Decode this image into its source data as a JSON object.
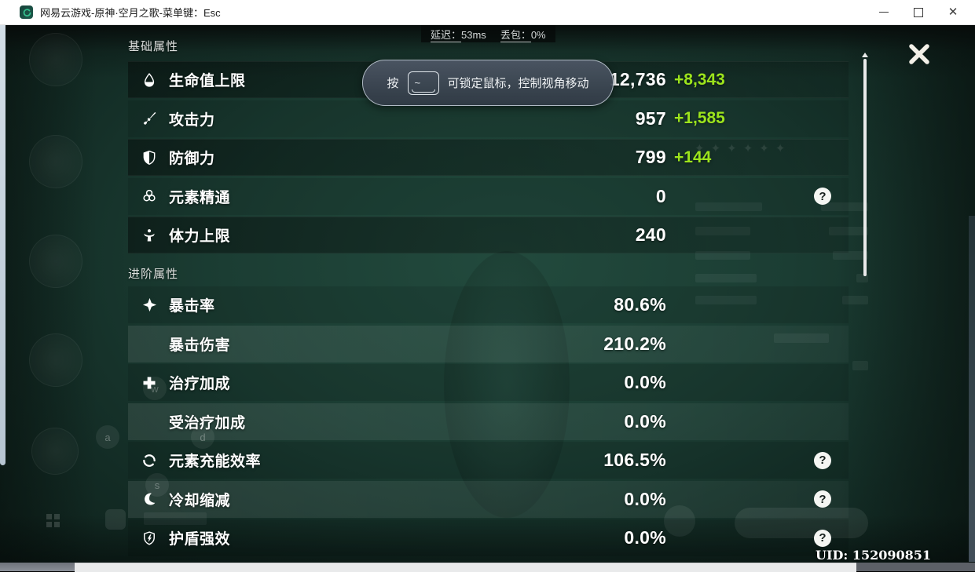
{
  "window": {
    "title": "网易云游戏-原神·空月之歌-菜单键：Esc"
  },
  "status_bar": {
    "latency_label": "延迟：",
    "latency_value": "53ms",
    "packet_label": "丢包：",
    "packet_value": "0%"
  },
  "tooltip": {
    "prefix": "按",
    "key": "~",
    "suffix": "可锁定鼠标，控制视角移动"
  },
  "panel": {
    "sections": [
      {
        "header": "基础属性",
        "rows": [
          {
            "icon": "hp",
            "label": "生命值上限",
            "value": "12,736",
            "bonus": "+8,343",
            "band": "dark"
          },
          {
            "icon": "atk",
            "label": "攻击力",
            "value": "957",
            "bonus": "+1,585"
          },
          {
            "icon": "def",
            "label": "防御力",
            "value": "799",
            "bonus": "+144",
            "band": "dark"
          },
          {
            "icon": "em",
            "label": "元素精通",
            "value": "0",
            "help": true
          },
          {
            "icon": "stamina",
            "label": "体力上限",
            "value": "240",
            "band": "dark"
          }
        ]
      },
      {
        "header": "进阶属性",
        "rows": [
          {
            "icon": "crit-rate",
            "label": "暴击率",
            "value": "80.6%"
          },
          {
            "icon": null,
            "label": "暴击伤害",
            "value": "210.2%",
            "band": "light"
          },
          {
            "icon": "healing",
            "label": "治疗加成",
            "value": "0.0%"
          },
          {
            "icon": null,
            "label": "受治疗加成",
            "value": "0.0%",
            "band": "light"
          },
          {
            "icon": "energy",
            "label": "元素充能效率",
            "value": "106.5%",
            "help": true
          },
          {
            "icon": "cooldown",
            "label": "冷却缩减",
            "value": "0.0%",
            "help": true,
            "band": "light"
          },
          {
            "icon": "shield-strength",
            "label": "护盾强效",
            "value": "0.0%",
            "help": true
          }
        ]
      }
    ],
    "help_glyph": "?"
  },
  "uid": "UID: 152090851",
  "ghost_keys": [
    "w",
    "a",
    "d",
    "s"
  ],
  "colors": {
    "bonus_green": "#9ce41c",
    "background_teal": "#1b3d33",
    "logo_green": "#35c08e"
  }
}
